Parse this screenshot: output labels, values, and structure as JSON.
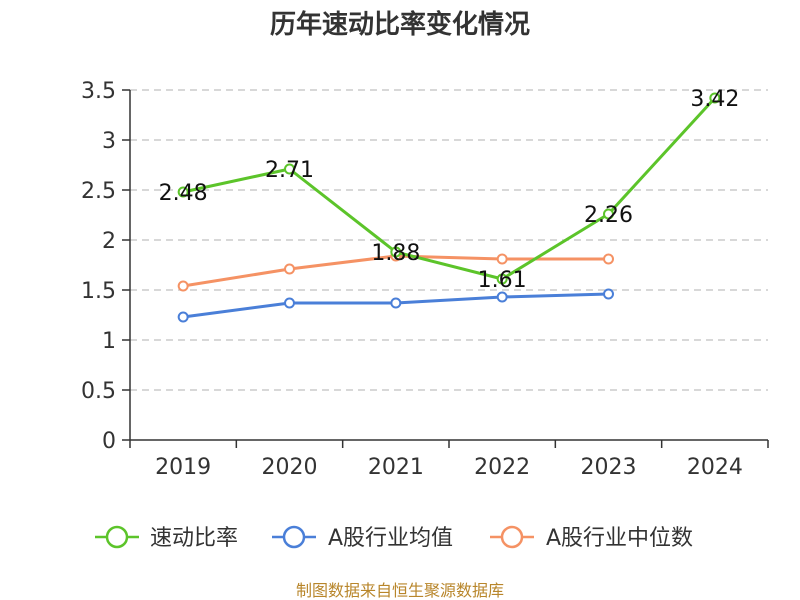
{
  "chart_data": {
    "type": "line",
    "title": "历年速动比率变化情况",
    "categories": [
      "2019",
      "2020",
      "2021",
      "2022",
      "2023",
      "2024"
    ],
    "ylim": [
      0,
      3.5
    ],
    "yticks": [
      "0",
      "0.5",
      "1",
      "1.5",
      "2",
      "2.5",
      "3",
      "3.5"
    ],
    "grid": true,
    "legend_position": "bottom",
    "series": [
      {
        "name": "速动比率",
        "color": "#5cc42a",
        "values": [
          2.48,
          2.71,
          1.88,
          1.61,
          2.26,
          3.42
        ],
        "labels": [
          "2.48",
          "2.71",
          "1.88",
          "1.61",
          "2.26",
          "3.42"
        ]
      },
      {
        "name": "A股行业均值",
        "color": "#4a7fd8",
        "values": [
          1.23,
          1.37,
          1.37,
          1.43,
          1.46,
          null
        ]
      },
      {
        "name": "A股行业中位数",
        "color": "#f59264",
        "values": [
          1.54,
          1.71,
          1.84,
          1.81,
          1.81,
          null
        ]
      }
    ],
    "source": "制图数据来自恒生聚源数据库"
  }
}
